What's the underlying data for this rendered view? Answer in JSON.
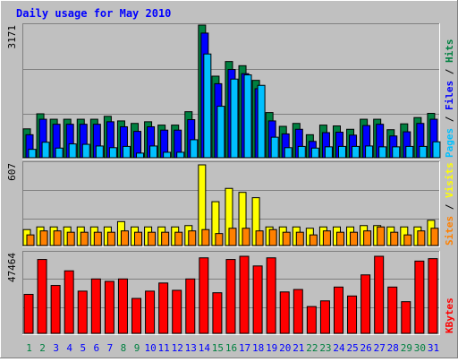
{
  "title": "Daily usage for May 2010",
  "colors": {
    "background": "#c0c0c0",
    "title": "#0000ff",
    "hits": "#008040",
    "files": "#0000ff",
    "pages": "#00c0ff",
    "visits": "#ffff00",
    "sites": "#ff8000",
    "kbytes": "#ff0000",
    "weekend_day": "#008040",
    "weekday": "#0000ff"
  },
  "chart_data": [
    {
      "type": "bar",
      "name": "hits-files-pages",
      "side_label": {
        "pages": "Pages",
        "sep1": " / ",
        "files": "Files",
        "sep2": " / ",
        "hits": "Hits"
      },
      "max_label": "3171",
      "ylim": [
        0,
        3171
      ],
      "categories": [
        "1",
        "2",
        "3",
        "4",
        "5",
        "6",
        "7",
        "8",
        "9",
        "10",
        "11",
        "12",
        "13",
        "14",
        "15",
        "16",
        "17",
        "18",
        "19",
        "20",
        "21",
        "22",
        "23",
        "24",
        "25",
        "26",
        "27",
        "28",
        "29",
        "30",
        "31"
      ],
      "series": [
        {
          "name": "Hits",
          "values": [
            690,
            1050,
            920,
            920,
            920,
            920,
            990,
            880,
            820,
            860,
            780,
            780,
            1100,
            3171,
            1950,
            2300,
            2200,
            1850,
            1080,
            750,
            820,
            550,
            780,
            760,
            680,
            920,
            920,
            670,
            810,
            960,
            1060
          ]
        },
        {
          "name": "Files",
          "values": [
            550,
            920,
            800,
            800,
            800,
            800,
            860,
            740,
            630,
            740,
            660,
            660,
            910,
            2980,
            1770,
            2110,
            2010,
            1650,
            880,
            570,
            680,
            390,
            600,
            610,
            540,
            770,
            800,
            520,
            620,
            820,
            920
          ]
        },
        {
          "name": "Pages",
          "values": [
            200,
            370,
            230,
            330,
            320,
            280,
            240,
            270,
            110,
            280,
            130,
            130,
            430,
            2480,
            1230,
            1880,
            1980,
            1730,
            490,
            240,
            270,
            230,
            260,
            270,
            270,
            280,
            260,
            260,
            270,
            270,
            380
          ]
        }
      ]
    },
    {
      "type": "bar",
      "name": "visits-sites",
      "side_label": {
        "sites": "Sites",
        "sep": " / ",
        "visits": "Visits"
      },
      "max_label": "607",
      "ylim": [
        0,
        607
      ],
      "categories": [
        "1",
        "2",
        "3",
        "4",
        "5",
        "6",
        "7",
        "8",
        "9",
        "10",
        "11",
        "12",
        "13",
        "14",
        "15",
        "16",
        "17",
        "18",
        "19",
        "20",
        "21",
        "22",
        "23",
        "24",
        "25",
        "26",
        "27",
        "28",
        "29",
        "30",
        "31"
      ],
      "series": [
        {
          "name": "Visits",
          "values": [
            120,
            140,
            140,
            140,
            140,
            140,
            140,
            180,
            140,
            140,
            140,
            140,
            150,
            607,
            330,
            430,
            400,
            360,
            140,
            140,
            140,
            130,
            140,
            140,
            140,
            150,
            150,
            140,
            140,
            140,
            190
          ]
        },
        {
          "name": "Sites",
          "values": [
            80,
            110,
            110,
            100,
            100,
            100,
            100,
            110,
            100,
            100,
            100,
            100,
            110,
            120,
            90,
            130,
            130,
            110,
            120,
            100,
            100,
            80,
            110,
            100,
            100,
            110,
            140,
            100,
            80,
            110,
            130
          ]
        }
      ]
    },
    {
      "type": "bar",
      "name": "kbytes",
      "side_label": {
        "kbytes": "KBytes"
      },
      "max_label": "47464",
      "ylim": [
        0,
        47464
      ],
      "categories": [
        "1",
        "2",
        "3",
        "4",
        "5",
        "6",
        "7",
        "8",
        "9",
        "10",
        "11",
        "12",
        "13",
        "14",
        "15",
        "16",
        "17",
        "18",
        "19",
        "20",
        "21",
        "22",
        "23",
        "24",
        "25",
        "26",
        "27",
        "28",
        "29",
        "30",
        "31"
      ],
      "series": [
        {
          "name": "KBytes",
          "values": [
            24000,
            45500,
            29500,
            38500,
            26000,
            33500,
            32000,
            33500,
            21500,
            26000,
            31000,
            26500,
            33500,
            46500,
            25000,
            45500,
            47464,
            41500,
            46500,
            25500,
            27000,
            16500,
            20000,
            28500,
            23000,
            36000,
            47464,
            28500,
            19500,
            44500,
            46000
          ]
        }
      ]
    }
  ],
  "x_axis": {
    "days": [
      "1",
      "2",
      "3",
      "4",
      "5",
      "6",
      "7",
      "8",
      "9",
      "10",
      "11",
      "12",
      "13",
      "14",
      "15",
      "16",
      "17",
      "18",
      "19",
      "20",
      "21",
      "22",
      "23",
      "24",
      "25",
      "26",
      "27",
      "28",
      "29",
      "30",
      "31"
    ],
    "weekend_days": [
      "1",
      "2",
      "8",
      "9",
      "15",
      "16",
      "22",
      "23",
      "29",
      "30"
    ]
  }
}
